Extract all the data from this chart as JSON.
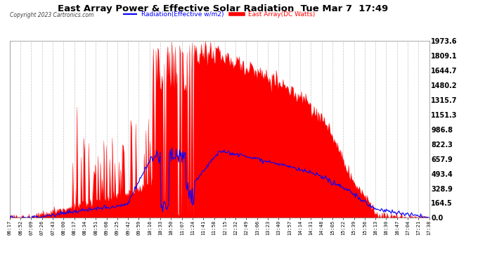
{
  "title": "East Array Power & Effective Solar Radiation  Tue Mar 7  17:49",
  "copyright": "Copyright 2023 Cartronics.com",
  "legend_radiation": "Radiation(Effective w/m2)",
  "legend_east": "East Array(DC Watts)",
  "ymin": 0.0,
  "ymax": 1973.6,
  "yticks": [
    0.0,
    164.5,
    328.9,
    493.4,
    657.9,
    822.3,
    986.8,
    1151.3,
    1315.7,
    1480.2,
    1644.7,
    1809.1,
    1973.6
  ],
  "bg_color": "#ffffff",
  "plot_bg_color": "#ffffff",
  "grid_color": "#aaaaaa",
  "red_color": "#ff0000",
  "blue_color": "#0000ff",
  "title_color": "#000000",
  "copyright_color": "#000000",
  "time_labels": [
    "06:17",
    "06:52",
    "07:09",
    "07:26",
    "07:43",
    "08:00",
    "08:17",
    "08:34",
    "08:51",
    "09:08",
    "09:25",
    "09:42",
    "09:59",
    "10:16",
    "10:33",
    "10:50",
    "11:07",
    "11:24",
    "11:41",
    "11:58",
    "12:15",
    "12:32",
    "12:49",
    "13:06",
    "13:23",
    "13:40",
    "13:57",
    "14:14",
    "14:31",
    "14:48",
    "15:05",
    "15:22",
    "15:39",
    "15:56",
    "16:13",
    "16:30",
    "16:47",
    "17:04",
    "17:21",
    "17:38"
  ],
  "n_points": 500
}
